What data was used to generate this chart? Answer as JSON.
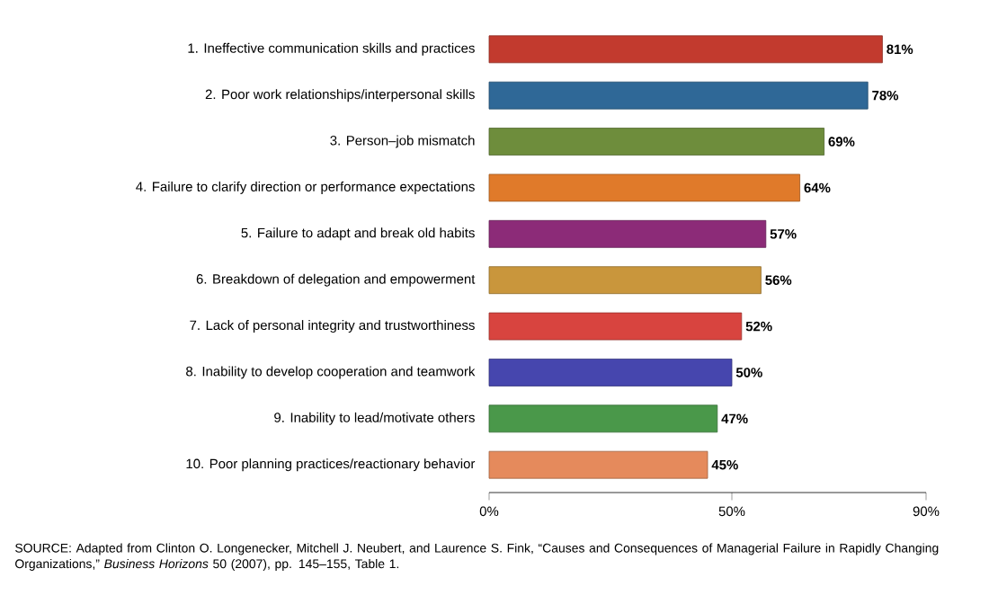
{
  "chart_data": {
    "type": "bar",
    "orientation": "horizontal",
    "categories": [
      "1. Ineffective communication skills and practices",
      "2. Poor work relationships/interpersonal skills",
      "3. Person–job mismatch",
      "4. Failure to clarify direction or performance expectations",
      "5. Failure to adapt and break old habits",
      "6. Breakdown of delegation and empowerment",
      "7. Lack of personal integrity and trustworthiness",
      "8. Inability to develop cooperation and teamwork",
      "9. Inability to lead/motivate others",
      "10. Poor planning practices/reactionary behavior"
    ],
    "values": [
      81,
      78,
      69,
      64,
      57,
      56,
      52,
      50,
      47,
      45
    ],
    "value_labels": [
      "81%",
      "78%",
      "69%",
      "64%",
      "57%",
      "56%",
      "52%",
      "50%",
      "47%",
      "45%"
    ],
    "colors": [
      "#c23a2e",
      "#2f6897",
      "#6e8d3c",
      "#e07a2a",
      "#8c2b78",
      "#c9963c",
      "#d8443f",
      "#4646ae",
      "#4a984a",
      "#e58a5c"
    ],
    "xlim": [
      0,
      90
    ],
    "xticks": [
      {
        "value": 0,
        "label": "0%"
      },
      {
        "value": 50,
        "label": "50%"
      },
      {
        "value": 90,
        "label": "90%"
      }
    ],
    "annotations": [
      "SOURCE: Adapted from Clinton O. Longenecker, Mitchell J. Neubert, and Laurence S. Fink, “Causes and Consequences of Managerial Failure in Rapidly Changing Organizations,” *Business Horizons* 50 (2007), pp. 145–155, Table 1."
    ]
  }
}
